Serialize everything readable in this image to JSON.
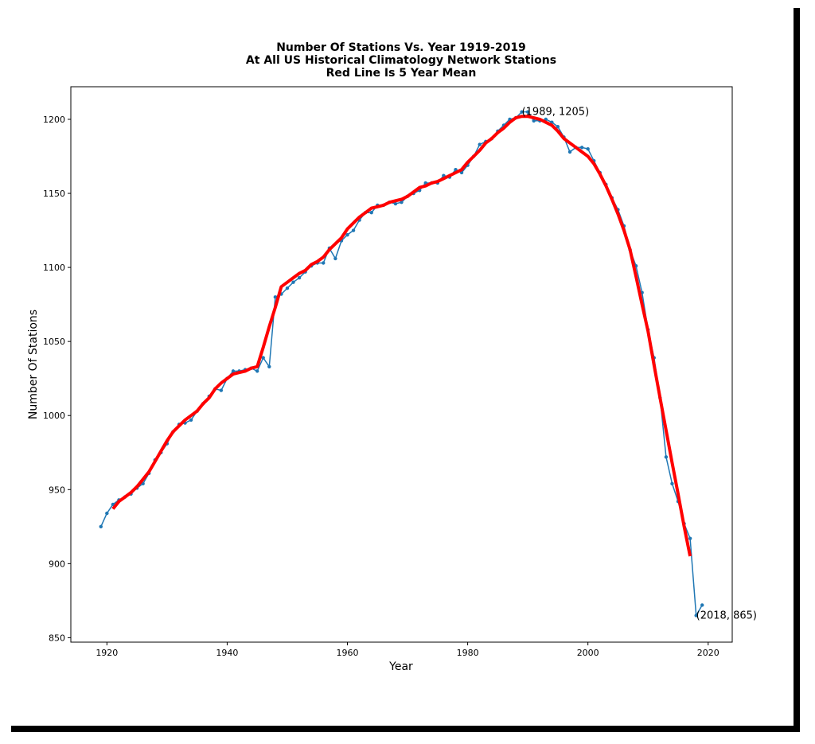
{
  "chart_data": {
    "type": "line",
    "title_lines": [
      "Number Of Stations Vs. Year 1919-2019",
      "At All US Historical Climatology Network Stations",
      "Red Line Is 5 Year Mean"
    ],
    "xlabel": "Year",
    "ylabel": "Number Of Stations",
    "xlim": [
      1914,
      2024
    ],
    "ylim": [
      847,
      1222
    ],
    "xticks": [
      1920,
      1940,
      1960,
      1980,
      2000,
      2020
    ],
    "yticks": [
      850,
      900,
      950,
      1000,
      1050,
      1100,
      1150,
      1200
    ],
    "grid": false,
    "series": [
      {
        "color": "#1f77b4",
        "x": [
          1919,
          1920,
          1921,
          1922,
          1923,
          1924,
          1925,
          1926,
          1927,
          1928,
          1929,
          1930,
          1931,
          1932,
          1933,
          1934,
          1935,
          1936,
          1937,
          1938,
          1939,
          1940,
          1941,
          1942,
          1943,
          1944,
          1945,
          1946,
          1947,
          1948,
          1949,
          1950,
          1951,
          1952,
          1953,
          1954,
          1955,
          1956,
          1957,
          1958,
          1959,
          1960,
          1961,
          1962,
          1963,
          1964,
          1965,
          1966,
          1967,
          1968,
          1969,
          1970,
          1971,
          1972,
          1973,
          1974,
          1975,
          1976,
          1977,
          1978,
          1979,
          1980,
          1981,
          1982,
          1983,
          1984,
          1985,
          1986,
          1987,
          1988,
          1989,
          1990,
          1991,
          1992,
          1993,
          1994,
          1995,
          1996,
          1997,
          1998,
          1999,
          2000,
          2001,
          2002,
          2003,
          2004,
          2005,
          2006,
          2007,
          2008,
          2009,
          2010,
          2011,
          2012,
          2013,
          2014,
          2015,
          2016,
          2017,
          2018,
          2019
        ],
        "y": [
          925,
          934,
          940,
          943,
          945,
          947,
          951,
          954,
          961,
          970,
          975,
          981,
          989,
          994,
          995,
          997,
          1003,
          1008,
          1013,
          1018,
          1017,
          1025,
          1030,
          1030,
          1031,
          1032,
          1030,
          1039,
          1033,
          1080,
          1082,
          1086,
          1090,
          1093,
          1097,
          1101,
          1103,
          1103,
          1113,
          1106,
          1118,
          1122,
          1125,
          1132,
          1137,
          1137,
          1142,
          1142,
          1144,
          1143,
          1144,
          1148,
          1150,
          1152,
          1157,
          1157,
          1157,
          1162,
          1161,
          1166,
          1164,
          1169,
          1175,
          1183,
          1185,
          1187,
          1192,
          1196,
          1200,
          1201,
          1205,
          1205,
          1199,
          1199,
          1200,
          1198,
          1195,
          1188,
          1178,
          1181,
          1181,
          1180,
          1172,
          1164,
          1156,
          1147,
          1139,
          1128,
          1112,
          1101,
          1083,
          1058,
          1039,
          1012,
          972,
          954,
          942,
          927,
          917,
          865,
          872
        ]
      },
      {
        "name": "5 Year Mean",
        "color": "#ff0000",
        "x": [
          1921,
          1922,
          1923,
          1924,
          1925,
          1926,
          1927,
          1928,
          1929,
          1930,
          1931,
          1932,
          1933,
          1934,
          1935,
          1936,
          1937,
          1938,
          1939,
          1940,
          1941,
          1942,
          1943,
          1944,
          1945,
          1946,
          1947,
          1948,
          1949,
          1950,
          1951,
          1952,
          1953,
          1954,
          1955,
          1956,
          1957,
          1958,
          1959,
          1960,
          1961,
          1962,
          1963,
          1964,
          1965,
          1966,
          1967,
          1968,
          1969,
          1970,
          1971,
          1972,
          1973,
          1974,
          1975,
          1976,
          1977,
          1978,
          1979,
          1980,
          1981,
          1982,
          1983,
          1984,
          1985,
          1986,
          1987,
          1988,
          1989,
          1990,
          1991,
          1992,
          1993,
          1994,
          1995,
          1996,
          1997,
          1998,
          1999,
          2000,
          2001,
          2002,
          2003,
          2004,
          2005,
          2006,
          2007,
          2008,
          2009,
          2010,
          2011,
          2012,
          2013,
          2014,
          2015,
          2016,
          2017
        ],
        "y": [
          937,
          942,
          945,
          948,
          952,
          957,
          962,
          969,
          976,
          983,
          989,
          993,
          997,
          1000,
          1003,
          1008,
          1012,
          1018,
          1022,
          1025,
          1028,
          1029,
          1030,
          1032,
          1033,
          1046,
          1060,
          1073,
          1087,
          1090,
          1093,
          1096,
          1098,
          1102,
          1104,
          1107,
          1112,
          1116,
          1120,
          1126,
          1130,
          1134,
          1137,
          1140,
          1141,
          1142,
          1144,
          1145,
          1146,
          1148,
          1151,
          1154,
          1155,
          1157,
          1158,
          1160,
          1162,
          1164,
          1166,
          1171,
          1175,
          1179,
          1184,
          1187,
          1191,
          1194,
          1198,
          1201,
          1202,
          1202,
          1201,
          1200,
          1198,
          1196,
          1192,
          1187,
          1184,
          1181,
          1178,
          1175,
          1170,
          1163,
          1155,
          1146,
          1136,
          1125,
          1112,
          1094,
          1075,
          1057,
          1034,
          1012,
          990,
          968,
          947,
          925,
          905
        ]
      }
    ],
    "annotations": [
      {
        "text": "(1989, 1205)",
        "x": 1989,
        "y": 1205
      },
      {
        "text": "(2018, 865)",
        "x": 2018,
        "y": 865
      }
    ]
  }
}
